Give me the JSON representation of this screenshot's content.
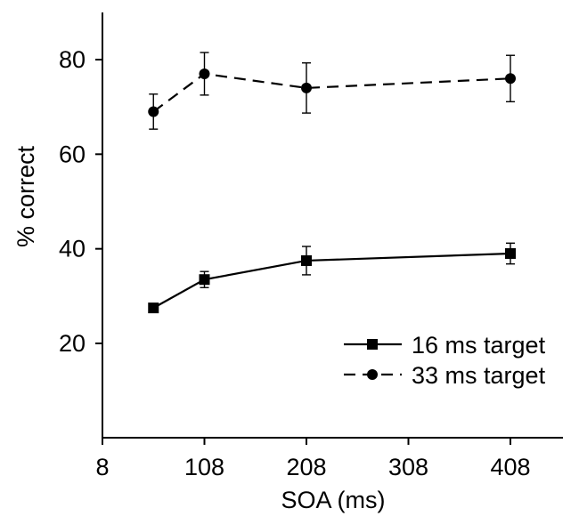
{
  "chart_data": {
    "type": "line",
    "xlabel": "SOA (ms)",
    "ylabel": "% correct",
    "xlim": [
      8,
      458
    ],
    "ylim": [
      0,
      90
    ],
    "x_ticks": [
      8,
      108,
      208,
      308,
      408
    ],
    "x_tick_labels": [
      "8",
      "108",
      "208",
      "308",
      "408"
    ],
    "y_ticks": [
      20,
      40,
      60,
      80
    ],
    "y_tick_labels": [
      "20",
      "40",
      "60",
      "80"
    ],
    "legend_position": "bottom-right",
    "series": [
      {
        "name": "16 ms target",
        "line_style": "solid",
        "marker": "square",
        "x": [
          58,
          108,
          208,
          408
        ],
        "y": [
          27.5,
          33.5,
          37.5,
          39
        ],
        "err": [
          0,
          1.7,
          3,
          2.2
        ]
      },
      {
        "name": "33 ms target",
        "line_style": "dashed",
        "marker": "circle",
        "x": [
          58,
          108,
          208,
          408
        ],
        "y": [
          69,
          77,
          74,
          76
        ],
        "err": [
          3.7,
          4.5,
          5.3,
          4.9
        ]
      }
    ]
  }
}
